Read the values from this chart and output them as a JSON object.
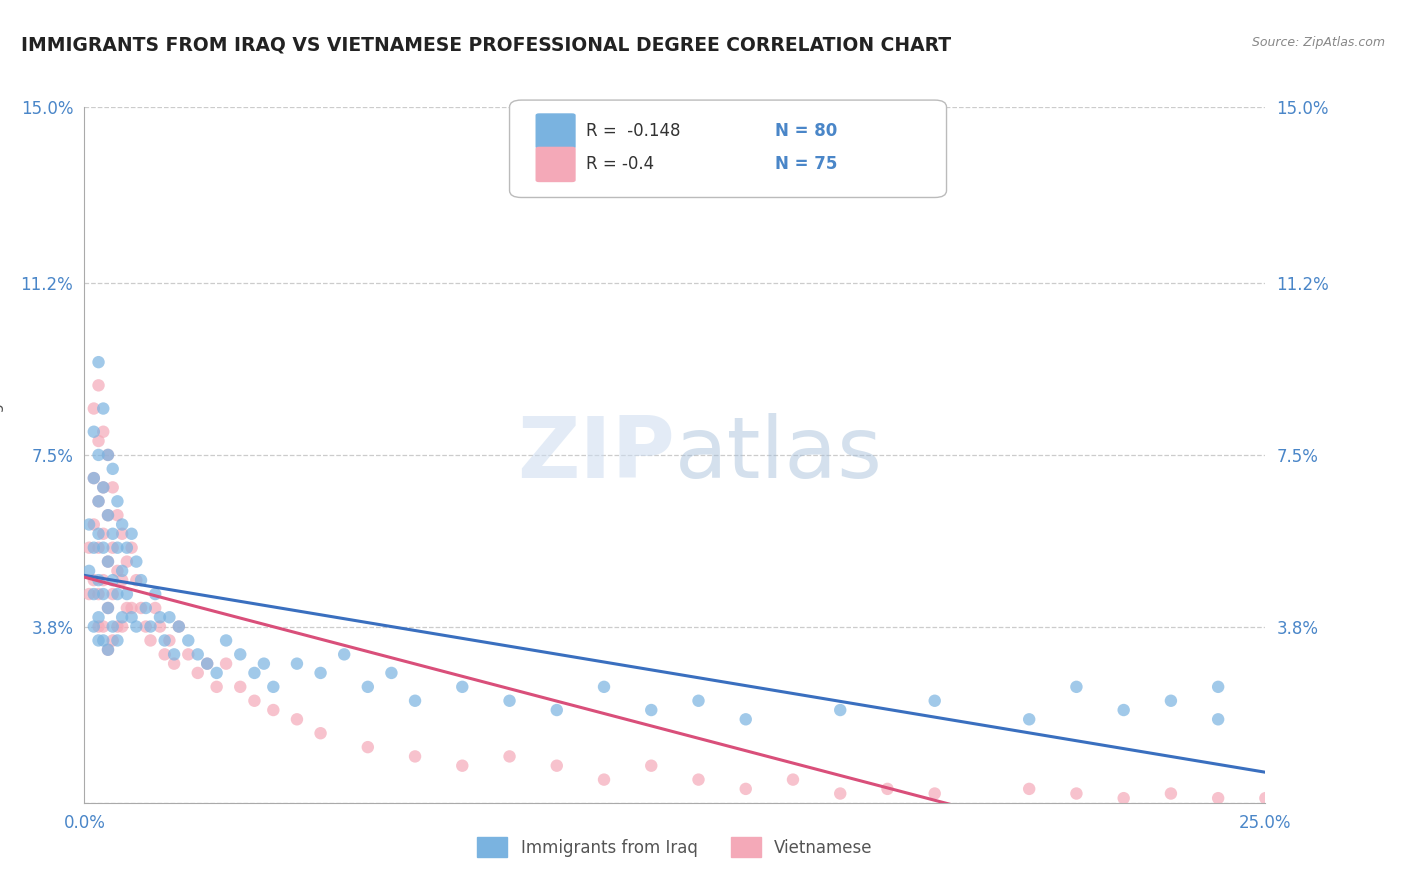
{
  "title": "IMMIGRANTS FROM IRAQ VS VIETNAMESE PROFESSIONAL DEGREE CORRELATION CHART",
  "source": "Source: ZipAtlas.com",
  "ylabel": "Professional Degree",
  "xlim": [
    0.0,
    0.25
  ],
  "ylim": [
    0.0,
    0.15
  ],
  "xticks": [
    0.0,
    0.05,
    0.1,
    0.15,
    0.2,
    0.25
  ],
  "xticklabels": [
    "0.0%",
    "",
    "",
    "",
    "",
    "25.0%"
  ],
  "yticks": [
    0.0,
    0.038,
    0.075,
    0.112,
    0.15
  ],
  "yticklabels": [
    "",
    "3.8%",
    "7.5%",
    "11.2%",
    "15.0%"
  ],
  "iraq_R": -0.148,
  "iraq_N": 80,
  "viet_R": -0.4,
  "viet_N": 75,
  "iraq_color": "#7ab3e0",
  "viet_color": "#f4a9b8",
  "iraq_line_color": "#3a6fbf",
  "viet_line_color": "#d94f7a",
  "watermark": "ZIPatlas",
  "background_color": "#ffffff",
  "grid_color": "#cccccc",
  "title_color": "#222222",
  "axis_label_color": "#555555",
  "tick_label_color": "#4a86c8",
  "iraq_x": [
    0.001,
    0.001,
    0.002,
    0.002,
    0.002,
    0.002,
    0.002,
    0.003,
    0.003,
    0.003,
    0.003,
    0.003,
    0.003,
    0.003,
    0.004,
    0.004,
    0.004,
    0.004,
    0.004,
    0.005,
    0.005,
    0.005,
    0.005,
    0.005,
    0.006,
    0.006,
    0.006,
    0.006,
    0.007,
    0.007,
    0.007,
    0.007,
    0.008,
    0.008,
    0.008,
    0.009,
    0.009,
    0.01,
    0.01,
    0.011,
    0.011,
    0.012,
    0.013,
    0.014,
    0.015,
    0.016,
    0.017,
    0.018,
    0.019,
    0.02,
    0.022,
    0.024,
    0.026,
    0.028,
    0.03,
    0.033,
    0.036,
    0.038,
    0.04,
    0.045,
    0.05,
    0.055,
    0.06,
    0.065,
    0.07,
    0.08,
    0.09,
    0.1,
    0.11,
    0.12,
    0.13,
    0.14,
    0.16,
    0.18,
    0.2,
    0.21,
    0.22,
    0.23,
    0.24,
    0.24
  ],
  "iraq_y": [
    0.06,
    0.05,
    0.08,
    0.07,
    0.055,
    0.045,
    0.038,
    0.095,
    0.075,
    0.065,
    0.058,
    0.048,
    0.04,
    0.035,
    0.085,
    0.068,
    0.055,
    0.045,
    0.035,
    0.075,
    0.062,
    0.052,
    0.042,
    0.033,
    0.072,
    0.058,
    0.048,
    0.038,
    0.065,
    0.055,
    0.045,
    0.035,
    0.06,
    0.05,
    0.04,
    0.055,
    0.045,
    0.058,
    0.04,
    0.052,
    0.038,
    0.048,
    0.042,
    0.038,
    0.045,
    0.04,
    0.035,
    0.04,
    0.032,
    0.038,
    0.035,
    0.032,
    0.03,
    0.028,
    0.035,
    0.032,
    0.028,
    0.03,
    0.025,
    0.03,
    0.028,
    0.032,
    0.025,
    0.028,
    0.022,
    0.025,
    0.022,
    0.02,
    0.025,
    0.02,
    0.022,
    0.018,
    0.02,
    0.022,
    0.018,
    0.025,
    0.02,
    0.022,
    0.018,
    0.025
  ],
  "viet_x": [
    0.001,
    0.001,
    0.002,
    0.002,
    0.002,
    0.002,
    0.003,
    0.003,
    0.003,
    0.003,
    0.003,
    0.003,
    0.004,
    0.004,
    0.004,
    0.004,
    0.004,
    0.005,
    0.005,
    0.005,
    0.005,
    0.005,
    0.006,
    0.006,
    0.006,
    0.006,
    0.007,
    0.007,
    0.007,
    0.008,
    0.008,
    0.008,
    0.009,
    0.009,
    0.01,
    0.01,
    0.011,
    0.012,
    0.013,
    0.014,
    0.015,
    0.016,
    0.017,
    0.018,
    0.019,
    0.02,
    0.022,
    0.024,
    0.026,
    0.028,
    0.03,
    0.033,
    0.036,
    0.04,
    0.045,
    0.05,
    0.06,
    0.07,
    0.08,
    0.09,
    0.1,
    0.11,
    0.12,
    0.13,
    0.14,
    0.15,
    0.16,
    0.17,
    0.18,
    0.2,
    0.21,
    0.22,
    0.23,
    0.24,
    0.25
  ],
  "viet_y": [
    0.055,
    0.045,
    0.085,
    0.07,
    0.06,
    0.048,
    0.09,
    0.078,
    0.065,
    0.055,
    0.045,
    0.038,
    0.08,
    0.068,
    0.058,
    0.048,
    0.038,
    0.075,
    0.062,
    0.052,
    0.042,
    0.033,
    0.068,
    0.055,
    0.045,
    0.035,
    0.062,
    0.05,
    0.038,
    0.058,
    0.048,
    0.038,
    0.052,
    0.042,
    0.055,
    0.042,
    0.048,
    0.042,
    0.038,
    0.035,
    0.042,
    0.038,
    0.032,
    0.035,
    0.03,
    0.038,
    0.032,
    0.028,
    0.03,
    0.025,
    0.03,
    0.025,
    0.022,
    0.02,
    0.018,
    0.015,
    0.012,
    0.01,
    0.008,
    0.01,
    0.008,
    0.005,
    0.008,
    0.005,
    0.003,
    0.005,
    0.002,
    0.003,
    0.002,
    0.003,
    0.002,
    0.001,
    0.002,
    0.001,
    0.001
  ]
}
